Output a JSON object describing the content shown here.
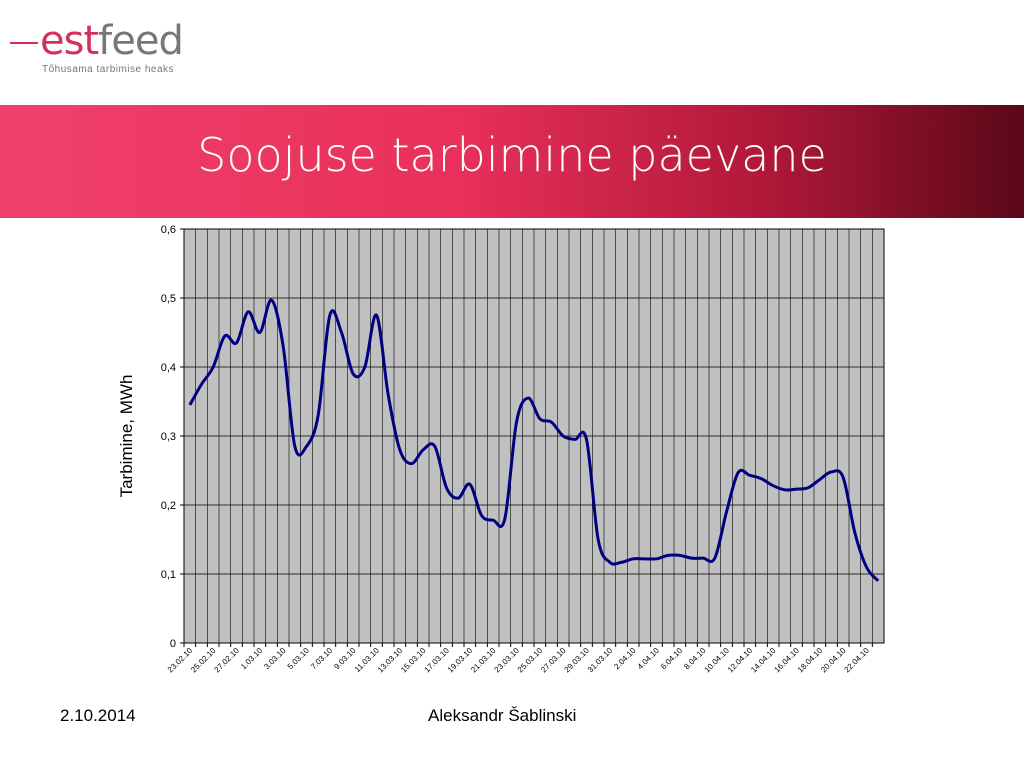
{
  "logo": {
    "part1": "est",
    "part2": "feed",
    "tagline": "Tõhusama tarbimise heaks"
  },
  "footer": {
    "date": "2.10.2014",
    "author": "Aleksandr Šablinski"
  },
  "chart_data": {
    "type": "line",
    "title": "Soojuse tarbimine päevane",
    "y_label": "Tarbimine, MWh",
    "categories": [
      "23.02.10",
      null,
      "25.02.10",
      null,
      "27.02.10",
      null,
      "1.03.10",
      null,
      "3.03.10",
      null,
      "5.03.10",
      null,
      "7.03.10",
      null,
      "9.03.10",
      null,
      "11.03.10",
      null,
      "13.03.10",
      null,
      "15.03.10",
      null,
      "17.03.10",
      null,
      "19.03.10",
      null,
      "21.03.10",
      null,
      "23.03.10",
      null,
      "25.03.10",
      null,
      "27.03.10",
      null,
      "29.03.10",
      null,
      "31.03.10",
      null,
      "2.04.10",
      null,
      "4.04.10",
      null,
      "6.04.10",
      null,
      "8.04.10",
      null,
      "10.04.10",
      null,
      "12.04.10",
      null,
      "14.04.10",
      null,
      "16.04.10",
      null,
      "18.04.10",
      null,
      "20.04.10",
      null,
      "22.04.10",
      null
    ],
    "series": [
      {
        "name": "Tarbimine",
        "color": "#000080",
        "values": [
          0.345,
          0.375,
          0.4,
          0.445,
          0.435,
          0.48,
          0.45,
          0.497,
          0.43,
          0.285,
          0.285,
          0.33,
          0.475,
          0.45,
          0.39,
          0.4,
          0.475,
          0.36,
          0.28,
          0.26,
          0.28,
          0.285,
          0.225,
          0.21,
          0.23,
          0.185,
          0.178,
          0.18,
          0.32,
          0.355,
          0.325,
          0.32,
          0.3,
          0.295,
          0.295,
          0.15,
          0.117,
          0.117,
          0.122,
          0.122,
          0.122,
          0.127,
          0.127,
          0.123,
          0.123,
          0.123,
          0.19,
          0.247,
          0.243,
          0.238,
          0.228,
          0.222,
          0.223,
          0.225,
          0.237,
          0.248,
          0.24,
          0.16,
          0.11,
          0.09
        ]
      }
    ],
    "ylim": [
      0,
      0.6
    ],
    "yticks": [
      0,
      {
        "value": 0.1,
        "label": "0,1"
      },
      {
        "value": 0.2,
        "label": "0,2"
      },
      {
        "value": 0.3,
        "label": "0,3"
      },
      {
        "value": 0.4,
        "label": "0,4"
      },
      {
        "value": 0.5,
        "label": "0,5"
      },
      {
        "value": 0.6,
        "label": "0,6"
      }
    ],
    "grid": true,
    "background": "#c0c0c0"
  }
}
